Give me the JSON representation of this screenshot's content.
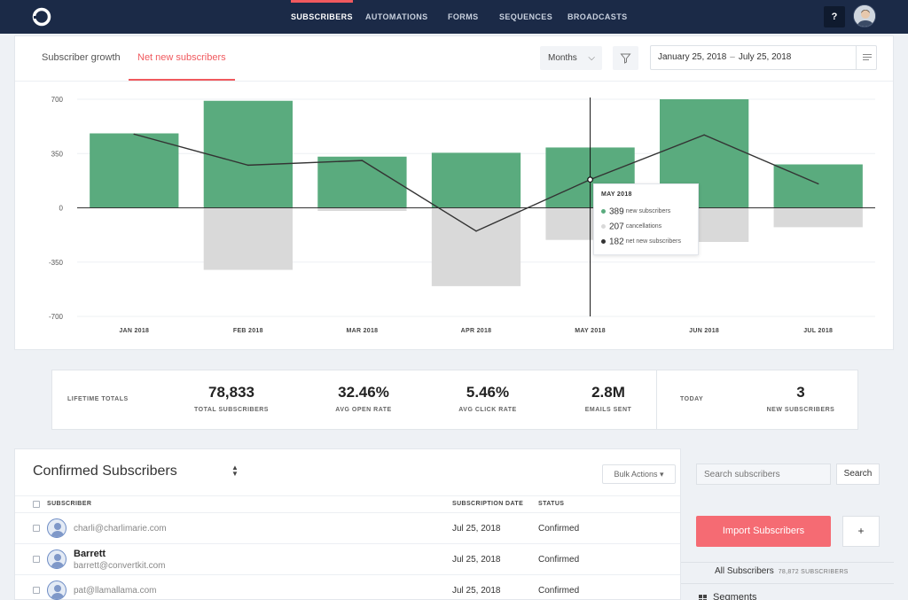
{
  "nav": {
    "items": [
      "SUBSCRIBERS",
      "AUTOMATIONS",
      "FORMS",
      "SEQUENCES",
      "BROADCASTS"
    ],
    "active": "SUBSCRIBERS",
    "help_label": "?",
    "logo_icon": "convertkit-logo-icon",
    "avatar_icon": "user-avatar-icon"
  },
  "chart_panel": {
    "tabs": [
      "Subscriber growth",
      "Net new subscribers"
    ],
    "active_tab": "Net new subscribers",
    "period_select": "Months",
    "date_start": "January 25, 2018",
    "date_sep": "–",
    "date_end": "July 25, 2018",
    "tooltip": {
      "title": "MAY 2018",
      "rows": [
        {
          "value": "389",
          "label": "new subscribers",
          "color": "#5aab7e"
        },
        {
          "value": "207",
          "label": "cancellations",
          "color": "#d9d9d9"
        },
        {
          "value": "182",
          "label": "net new subscribers",
          "color": "#333333"
        }
      ]
    }
  },
  "chart_data": {
    "type": "bar",
    "categories": [
      "JAN 2018",
      "FEB 2018",
      "MAR 2018",
      "APR 2018",
      "MAY 2018",
      "JUN 2018",
      "JUL 2018"
    ],
    "series": [
      {
        "name": "new subscribers",
        "values": [
          480,
          690,
          330,
          355,
          389,
          700,
          280
        ],
        "color": "#5aab7e"
      },
      {
        "name": "cancellations",
        "values": [
          0,
          -400,
          -20,
          -505,
          -207,
          -220,
          -125
        ],
        "color": "#d9d9d9"
      },
      {
        "name": "net new subscribers",
        "values": [
          475,
          275,
          305,
          -150,
          182,
          470,
          155
        ],
        "color": "#333333",
        "type": "line"
      }
    ],
    "yticks": [
      "700",
      "350",
      "0",
      "-350",
      "-700"
    ],
    "ylim": [
      -700,
      700
    ],
    "grid": true,
    "highlighted_category": "MAY 2018"
  },
  "totals": {
    "lifetime_label": "LIFETIME TOTALS",
    "stats": [
      {
        "value": "78,833",
        "label": "TOTAL SUBSCRIBERS"
      },
      {
        "value": "32.46%",
        "label": "AVG OPEN RATE"
      },
      {
        "value": "5.46%",
        "label": "AVG CLICK RATE"
      },
      {
        "value": "2.8M",
        "label": "EMAILS SENT"
      }
    ],
    "today_label": "TODAY",
    "today_stat": {
      "value": "3",
      "label": "NEW SUBSCRIBERS"
    }
  },
  "list": {
    "title": "Confirmed Subscribers",
    "bulk_actions": "Bulk Actions ▾",
    "columns": [
      "SUBSCRIBER",
      "SUBSCRIPTION DATE",
      "STATUS"
    ],
    "rows": [
      {
        "name": "",
        "email": "charli@charlimarie.com",
        "date": "Jul 25, 2018",
        "status": "Confirmed"
      },
      {
        "name": "Barrett",
        "email": "barrett@convertkit.com",
        "date": "Jul 25, 2018",
        "status": "Confirmed"
      },
      {
        "name": "",
        "email": "pat@llamallama.com",
        "date": "Jul 25, 2018",
        "status": "Confirmed"
      }
    ]
  },
  "sidebar": {
    "search_placeholder": "Search subscribers",
    "search_button": "Search",
    "import_button": "Import Subscribers",
    "add_button": "+",
    "all_subscribers": "All Subscribers",
    "all_subscribers_count": "78,872 SUBSCRIBERS",
    "segments_label": "Segments"
  },
  "colors": {
    "nav_bg": "#1b2a47",
    "accent": "#f0595e",
    "bar_green": "#5aab7e",
    "bar_grey": "#d9d9d9"
  }
}
